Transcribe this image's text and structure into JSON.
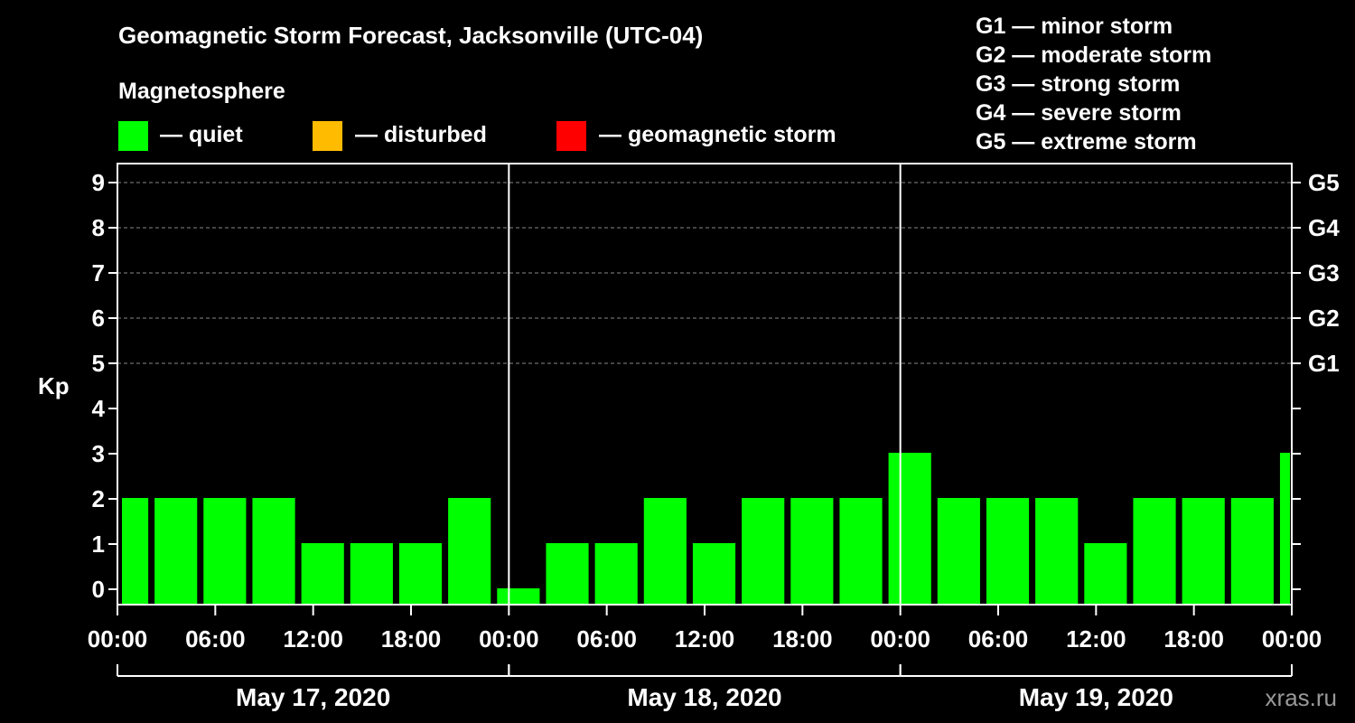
{
  "chart_data": {
    "type": "bar",
    "title": "Geomagnetic Storm Forecast, Jacksonville (UTC-04)",
    "legend": {
      "heading": "Magnetosphere",
      "items": [
        {
          "label": "— quiet",
          "color": "#00ff00"
        },
        {
          "label": "— disturbed",
          "color": "#ffbb00"
        },
        {
          "label": "— geomagnetic storm",
          "color": "#ff0000"
        }
      ]
    },
    "g_scale": [
      "G1 — minor storm",
      "G2 — moderate storm",
      "G3 — strong storm",
      "G4 — severe storm",
      "G5 — extreme storm"
    ],
    "ylabel": "Kp",
    "ylim": [
      0,
      9
    ],
    "yticks": [
      "0",
      "1",
      "2",
      "3",
      "4",
      "5",
      "6",
      "7",
      "8",
      "9"
    ],
    "right_ticks": [
      {
        "kp": 5,
        "label": "G1"
      },
      {
        "kp": 6,
        "label": "G2"
      },
      {
        "kp": 7,
        "label": "G3"
      },
      {
        "kp": 8,
        "label": "G4"
      },
      {
        "kp": 9,
        "label": "G5"
      }
    ],
    "grid_dashed_at": [
      5,
      6,
      7,
      8,
      9
    ],
    "x_range_hours": [
      0,
      72
    ],
    "xticks": [
      {
        "hour": 0,
        "label": "00:00"
      },
      {
        "hour": 6,
        "label": "06:00"
      },
      {
        "hour": 12,
        "label": "12:00"
      },
      {
        "hour": 18,
        "label": "18:00"
      },
      {
        "hour": 24,
        "label": "00:00"
      },
      {
        "hour": 30,
        "label": "06:00"
      },
      {
        "hour": 36,
        "label": "12:00"
      },
      {
        "hour": 42,
        "label": "18:00"
      },
      {
        "hour": 48,
        "label": "00:00"
      },
      {
        "hour": 54,
        "label": "06:00"
      },
      {
        "hour": 60,
        "label": "12:00"
      },
      {
        "hour": 66,
        "label": "18:00"
      },
      {
        "hour": 72,
        "label": "00:00"
      }
    ],
    "days": [
      {
        "label": "May 17, 2020",
        "start": 0,
        "end": 24
      },
      {
        "label": "May 18, 2020",
        "start": 24,
        "end": 48
      },
      {
        "label": "May 19, 2020",
        "start": 48,
        "end": 72
      }
    ],
    "bars": [
      {
        "start": 0,
        "end": 2,
        "kp": 2
      },
      {
        "start": 2,
        "end": 5,
        "kp": 2
      },
      {
        "start": 5,
        "end": 8,
        "kp": 2
      },
      {
        "start": 8,
        "end": 11,
        "kp": 2
      },
      {
        "start": 11,
        "end": 14,
        "kp": 1
      },
      {
        "start": 14,
        "end": 17,
        "kp": 1
      },
      {
        "start": 17,
        "end": 20,
        "kp": 1
      },
      {
        "start": 20,
        "end": 23,
        "kp": 2
      },
      {
        "start": 23,
        "end": 26,
        "kp": 0
      },
      {
        "start": 26,
        "end": 29,
        "kp": 1
      },
      {
        "start": 29,
        "end": 32,
        "kp": 1
      },
      {
        "start": 32,
        "end": 35,
        "kp": 2
      },
      {
        "start": 35,
        "end": 38,
        "kp": 1
      },
      {
        "start": 38,
        "end": 41,
        "kp": 2
      },
      {
        "start": 41,
        "end": 44,
        "kp": 2
      },
      {
        "start": 44,
        "end": 47,
        "kp": 2
      },
      {
        "start": 47,
        "end": 50,
        "kp": 3
      },
      {
        "start": 50,
        "end": 53,
        "kp": 2
      },
      {
        "start": 53,
        "end": 56,
        "kp": 2
      },
      {
        "start": 56,
        "end": 59,
        "kp": 2
      },
      {
        "start": 59,
        "end": 62,
        "kp": 1
      },
      {
        "start": 62,
        "end": 65,
        "kp": 2
      },
      {
        "start": 65,
        "end": 68,
        "kp": 2
      },
      {
        "start": 68,
        "end": 71,
        "kp": 2
      },
      {
        "start": 71,
        "end": 72,
        "kp": 3
      }
    ],
    "bar_color": "#00ff00"
  },
  "watermark": "xras.ru"
}
